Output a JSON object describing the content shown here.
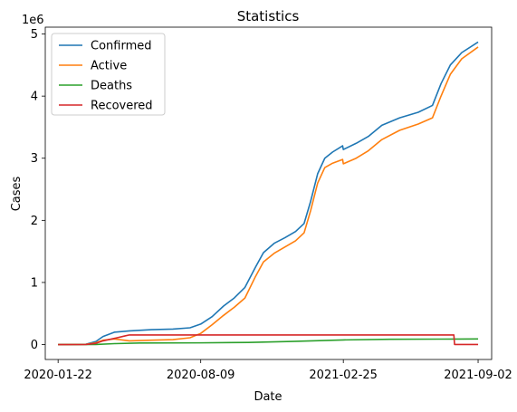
{
  "chart_data": {
    "type": "line",
    "title": "Statistics",
    "xlabel": "Date",
    "ylabel": "Cases",
    "y_offset_label": "1e6",
    "x_ticks": [
      "2020-01-22",
      "2020-08-09",
      "2021-02-25",
      "2021-09-02"
    ],
    "y_ticks": [
      "0",
      "1",
      "2",
      "3",
      "4",
      "5"
    ],
    "y_tick_values": [
      0,
      1,
      2,
      3,
      4,
      5
    ],
    "ylim": [
      -0.24,
      5.11
    ],
    "xlim": [
      "2020-01-04",
      "2021-09-21"
    ],
    "legend_position": "upper-left",
    "grid": false,
    "series": [
      {
        "name": "Confirmed",
        "color": "#1f77b4",
        "points": [
          [
            "2020-01-22",
            0
          ],
          [
            "2020-03-01",
            0.005
          ],
          [
            "2020-03-15",
            0.05
          ],
          [
            "2020-03-25",
            0.13
          ],
          [
            "2020-04-10",
            0.2
          ],
          [
            "2020-05-01",
            0.22
          ],
          [
            "2020-06-01",
            0.24
          ],
          [
            "2020-07-01",
            0.25
          ],
          [
            "2020-07-25",
            0.27
          ],
          [
            "2020-08-09",
            0.33
          ],
          [
            "2020-08-25",
            0.45
          ],
          [
            "2020-09-10",
            0.62
          ],
          [
            "2020-09-25",
            0.75
          ],
          [
            "2020-10-10",
            0.92
          ],
          [
            "2020-10-25",
            1.25
          ],
          [
            "2020-11-05",
            1.48
          ],
          [
            "2020-11-20",
            1.63
          ],
          [
            "2020-12-05",
            1.72
          ],
          [
            "2020-12-20",
            1.82
          ],
          [
            "2021-01-01",
            1.95
          ],
          [
            "2021-01-10",
            2.3
          ],
          [
            "2021-01-20",
            2.75
          ],
          [
            "2021-01-30",
            3.0
          ],
          [
            "2021-02-10",
            3.1
          ],
          [
            "2021-02-24",
            3.2
          ],
          [
            "2021-02-25",
            3.14
          ],
          [
            "2021-03-15",
            3.24
          ],
          [
            "2021-04-01",
            3.35
          ],
          [
            "2021-04-20",
            3.53
          ],
          [
            "2021-05-15",
            3.65
          ],
          [
            "2021-06-10",
            3.74
          ],
          [
            "2021-06-30",
            3.85
          ],
          [
            "2021-07-12",
            4.2
          ],
          [
            "2021-07-25",
            4.5
          ],
          [
            "2021-08-10",
            4.7
          ],
          [
            "2021-09-02",
            4.87
          ]
        ]
      },
      {
        "name": "Active",
        "color": "#ff7f0e",
        "points": [
          [
            "2020-01-22",
            0
          ],
          [
            "2020-03-01",
            0.004
          ],
          [
            "2020-03-15",
            0.03
          ],
          [
            "2020-03-25",
            0.07
          ],
          [
            "2020-04-10",
            0.09
          ],
          [
            "2020-05-01",
            0.06
          ],
          [
            "2020-06-01",
            0.07
          ],
          [
            "2020-07-01",
            0.08
          ],
          [
            "2020-07-25",
            0.11
          ],
          [
            "2020-08-09",
            0.18
          ],
          [
            "2020-08-25",
            0.32
          ],
          [
            "2020-09-10",
            0.47
          ],
          [
            "2020-09-25",
            0.6
          ],
          [
            "2020-10-10",
            0.75
          ],
          [
            "2020-10-25",
            1.1
          ],
          [
            "2020-11-05",
            1.33
          ],
          [
            "2020-11-20",
            1.47
          ],
          [
            "2020-12-05",
            1.57
          ],
          [
            "2020-12-20",
            1.67
          ],
          [
            "2021-01-01",
            1.8
          ],
          [
            "2021-01-10",
            2.15
          ],
          [
            "2021-01-20",
            2.6
          ],
          [
            "2021-01-30",
            2.85
          ],
          [
            "2021-02-10",
            2.92
          ],
          [
            "2021-02-24",
            2.98
          ],
          [
            "2021-02-25",
            2.91
          ],
          [
            "2021-03-15",
            3.0
          ],
          [
            "2021-04-01",
            3.12
          ],
          [
            "2021-04-20",
            3.3
          ],
          [
            "2021-05-15",
            3.45
          ],
          [
            "2021-06-10",
            3.55
          ],
          [
            "2021-06-30",
            3.65
          ],
          [
            "2021-07-12",
            4.0
          ],
          [
            "2021-07-25",
            4.35
          ],
          [
            "2021-08-10",
            4.6
          ],
          [
            "2021-09-02",
            4.79
          ]
        ]
      },
      {
        "name": "Deaths",
        "color": "#2ca02c",
        "points": [
          [
            "2020-01-22",
            0
          ],
          [
            "2020-03-15",
            0.002
          ],
          [
            "2020-04-10",
            0.015
          ],
          [
            "2020-05-15",
            0.025
          ],
          [
            "2020-08-09",
            0.028
          ],
          [
            "2020-10-15",
            0.035
          ],
          [
            "2020-12-15",
            0.05
          ],
          [
            "2021-02-25",
            0.075
          ],
          [
            "2021-05-01",
            0.085
          ],
          [
            "2021-07-10",
            0.088
          ],
          [
            "2021-09-02",
            0.09
          ]
        ]
      },
      {
        "name": "Recovered",
        "color": "#d62728",
        "points": [
          [
            "2020-01-22",
            0
          ],
          [
            "2020-03-01",
            0.002
          ],
          [
            "2020-03-15",
            0.02
          ],
          [
            "2020-03-25",
            0.06
          ],
          [
            "2020-04-10",
            0.1
          ],
          [
            "2020-04-25",
            0.14
          ],
          [
            "2020-05-01",
            0.155
          ],
          [
            "2021-07-30",
            0.155
          ],
          [
            "2021-07-31",
            0.002
          ],
          [
            "2021-09-02",
            0.002
          ]
        ]
      }
    ]
  }
}
